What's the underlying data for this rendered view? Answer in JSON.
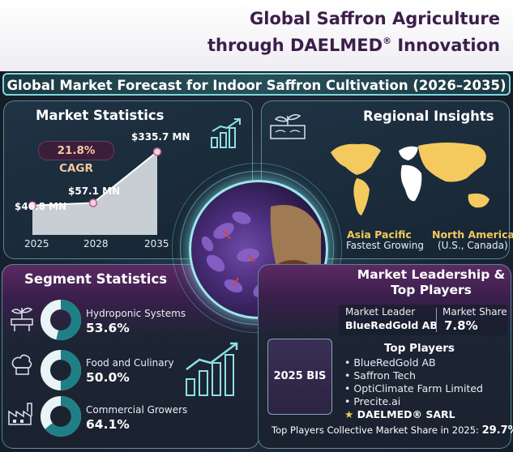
{
  "header": {
    "title_line1": "Global Saffron Agriculture",
    "title_line2_pre": "through DAELMED",
    "title_reg": "®",
    "title_line2_post": " Innovation"
  },
  "banner": {
    "text": "Global Market Forecast for Indoor Saffron Cultivation (2026–2035)"
  },
  "market_stats": {
    "title": "Market Statistics",
    "cagr": "21.8% CAGR",
    "points": [
      {
        "year": "2025",
        "label": "$46.8 MN",
        "value": 46.8
      },
      {
        "year": "2028",
        "label": "$57.1 MN",
        "value": 57.1
      },
      {
        "year": "2035",
        "label": "$335.7 MN",
        "value": 335.7
      }
    ]
  },
  "regional": {
    "title": "Regional Insights",
    "ap_name": "Asia Pacific",
    "ap_desc": "Fastest Growing",
    "na_name": "North America",
    "na_desc": "(U.S., Canada)"
  },
  "segments": {
    "title": "Segment Statistics",
    "items": [
      {
        "name": "Hydroponic Systems",
        "value": "53.6%",
        "fraction": 0.536,
        "icon": "plant-pipe-icon"
      },
      {
        "name": "Food and Culinary",
        "value": "50.0%",
        "fraction": 0.5,
        "icon": "chef-hat-icon"
      },
      {
        "name": "Commercial Growers",
        "value": "64.1%",
        "fraction": 0.641,
        "icon": "factory-icon"
      }
    ]
  },
  "leadership": {
    "title_line1": "Market Leadership &",
    "title_line2": "Top Players",
    "leader_label": "Market Leader",
    "leader_name": "BlueRedGold AB",
    "share_label": "Market Share",
    "share_value": "7.8%",
    "year_badge": "2025 BIS",
    "top_players_title": "Top Players",
    "players": [
      "BlueRedGold AB",
      "Saffron Tech",
      "OptiClimate Farm Limited",
      "Precite.ai"
    ],
    "daelmed": "DAELMED® SARL",
    "footer_label": "Top Players Collective Market Share in 2025: ",
    "footer_value": "29.7%"
  },
  "colors": {
    "accent_teal": "#8fe0e6",
    "donut_teal": "#1f7f86",
    "donut_light": "#e8f4f6",
    "gold": "#f4c95d",
    "purple": "#5b2a63"
  }
}
